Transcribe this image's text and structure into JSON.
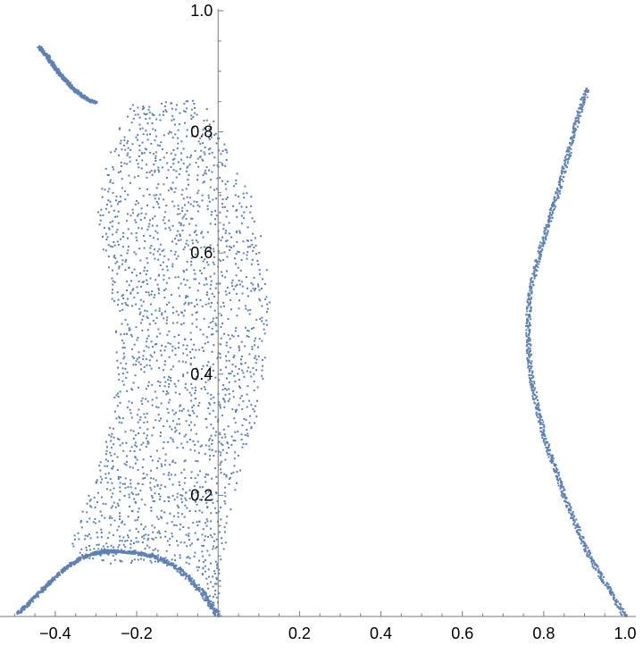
{
  "chart_data": {
    "type": "scatter",
    "title": "",
    "xlabel": "",
    "ylabel": "",
    "xlim": [
      -0.527,
      1.013
    ],
    "ylim": [
      0,
      1.0
    ],
    "grid": false,
    "legend": "none",
    "point_color": "#5e81b5",
    "axis_color": "#7a7a7a",
    "x_ticks": [
      {
        "value": -0.4,
        "label": "−0.4"
      },
      {
        "value": -0.2,
        "label": "−0.2"
      },
      {
        "value": 0.2,
        "label": "0.2"
      },
      {
        "value": 0.4,
        "label": "0.4"
      },
      {
        "value": 0.6,
        "label": "0.6"
      },
      {
        "value": 0.8,
        "label": "0.8"
      },
      {
        "value": 1.0,
        "label": "1.0"
      }
    ],
    "y_ticks": [
      {
        "value": 0.2,
        "label": "0.2"
      },
      {
        "value": 0.4,
        "label": "0.4"
      },
      {
        "value": 0.6,
        "label": "0.6"
      },
      {
        "value": 0.8,
        "label": "0.8"
      },
      {
        "value": 1.0,
        "label": "1.0"
      }
    ],
    "regions": [
      {
        "name": "",
        "kind": "filled-band",
        "density": 0.38,
        "y_min": 0.005,
        "y_max": 0.85,
        "left_boundary": [
          [
            0.85,
            -0.205
          ],
          [
            0.8,
            -0.245
          ],
          [
            0.75,
            -0.275
          ],
          [
            0.7,
            -0.29
          ],
          [
            0.65,
            -0.29
          ],
          [
            0.6,
            -0.278
          ],
          [
            0.55,
            -0.262
          ],
          [
            0.5,
            -0.25
          ],
          [
            0.45,
            -0.245
          ],
          [
            0.4,
            -0.247
          ],
          [
            0.35,
            -0.255
          ],
          [
            0.3,
            -0.268
          ],
          [
            0.25,
            -0.288
          ],
          [
            0.2,
            -0.315
          ],
          [
            0.15,
            -0.345
          ],
          [
            0.12,
            -0.362
          ],
          [
            0.1,
            -0.33
          ],
          [
            0.09,
            -0.3
          ],
          [
            0.085,
            -0.24
          ],
          [
            0.09,
            -0.18
          ],
          [
            0.1,
            -0.12
          ],
          [
            0.1,
            -0.08
          ],
          [
            0.08,
            -0.05
          ],
          [
            0.05,
            -0.025
          ],
          [
            0.02,
            -0.01
          ],
          [
            0.005,
            0.0
          ]
        ],
        "right_boundary": [
          [
            0.85,
            -0.04
          ],
          [
            0.8,
            0.005
          ],
          [
            0.75,
            0.04
          ],
          [
            0.7,
            0.075
          ],
          [
            0.65,
            0.098
          ],
          [
            0.6,
            0.113
          ],
          [
            0.55,
            0.123
          ],
          [
            0.5,
            0.128
          ],
          [
            0.45,
            0.125
          ],
          [
            0.4,
            0.115
          ],
          [
            0.35,
            0.1
          ],
          [
            0.3,
            0.082
          ],
          [
            0.25,
            0.06
          ],
          [
            0.2,
            0.04
          ],
          [
            0.15,
            0.025
          ],
          [
            0.1,
            0.012
          ],
          [
            0.05,
            0.003
          ],
          [
            0.005,
            0.0
          ]
        ]
      },
      {
        "name": "",
        "kind": "thin-curve",
        "width": 0.012,
        "samples": 320,
        "points": [
          [
            0.908,
            0.87
          ],
          [
            0.895,
            0.85
          ],
          [
            0.875,
            0.8
          ],
          [
            0.855,
            0.75
          ],
          [
            0.835,
            0.7
          ],
          [
            0.812,
            0.65
          ],
          [
            0.79,
            0.6
          ],
          [
            0.77,
            0.55
          ],
          [
            0.762,
            0.5
          ],
          [
            0.762,
            0.45
          ],
          [
            0.768,
            0.4
          ],
          [
            0.782,
            0.35
          ],
          [
            0.8,
            0.3
          ],
          [
            0.825,
            0.25
          ],
          [
            0.85,
            0.2
          ],
          [
            0.88,
            0.15
          ],
          [
            0.912,
            0.1
          ],
          [
            0.945,
            0.06
          ],
          [
            0.975,
            0.03
          ],
          [
            1.0,
            0.0
          ]
        ]
      },
      {
        "name": "",
        "kind": "thin-curve",
        "width": 0.01,
        "samples": 140,
        "points": [
          [
            -0.44,
            0.94
          ],
          [
            -0.42,
            0.925
          ],
          [
            -0.4,
            0.905
          ],
          [
            -0.375,
            0.885
          ],
          [
            -0.35,
            0.868
          ],
          [
            -0.325,
            0.855
          ],
          [
            -0.3,
            0.848
          ]
        ]
      },
      {
        "name": "",
        "kind": "thin-curve",
        "width": 0.01,
        "samples": 140,
        "points": [
          [
            -0.49,
            0.005
          ],
          [
            -0.46,
            0.025
          ],
          [
            -0.43,
            0.045
          ],
          [
            -0.4,
            0.065
          ],
          [
            -0.37,
            0.082
          ],
          [
            -0.34,
            0.095
          ],
          [
            -0.31,
            0.103
          ],
          [
            -0.28,
            0.108
          ],
          [
            -0.25,
            0.108
          ]
        ]
      },
      {
        "name": "",
        "kind": "thin-curve",
        "width": 0.014,
        "samples": 160,
        "points": [
          [
            -0.3,
            0.105
          ],
          [
            -0.25,
            0.108
          ],
          [
            -0.2,
            0.105
          ],
          [
            -0.15,
            0.097
          ],
          [
            -0.1,
            0.08
          ],
          [
            -0.07,
            0.062
          ],
          [
            -0.04,
            0.04
          ],
          [
            -0.02,
            0.02
          ],
          [
            0.0,
            0.0
          ]
        ]
      }
    ]
  }
}
